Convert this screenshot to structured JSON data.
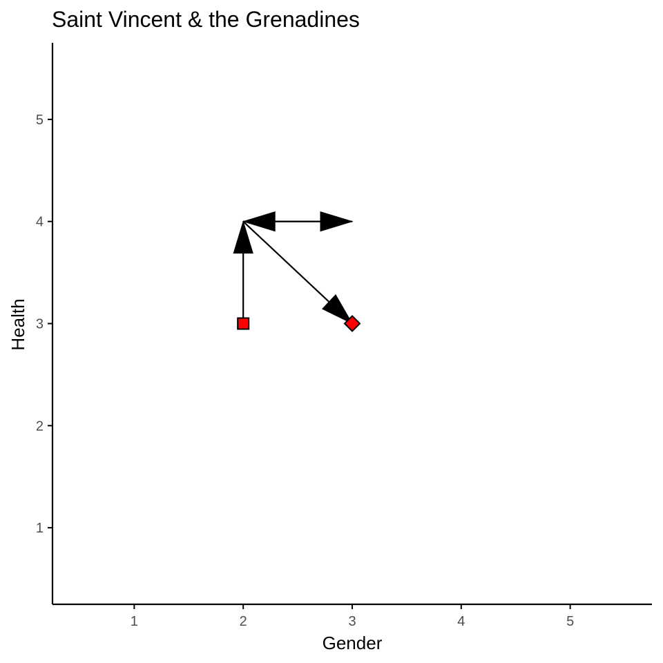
{
  "chart_data": {
    "type": "scatter",
    "title": "Saint Vincent & the Grenadines",
    "xlabel": "Gender",
    "ylabel": "Health",
    "xlim": [
      0.25,
      5.75
    ],
    "ylim": [
      0.25,
      5.75
    ],
    "x_ticks": [
      1,
      2,
      3,
      4,
      5
    ],
    "y_ticks": [
      1,
      2,
      3,
      4,
      5
    ],
    "grid": false,
    "points": [
      {
        "x": 2,
        "y": 3,
        "shape": "square",
        "fill": "#ff0000"
      },
      {
        "x": 3,
        "y": 3,
        "shape": "diamond",
        "fill": "#ff0000"
      }
    ],
    "arrows": [
      {
        "from": [
          2,
          3
        ],
        "to": [
          2,
          4
        ]
      },
      {
        "from": [
          2,
          4
        ],
        "to": [
          3,
          4
        ]
      },
      {
        "from": [
          3,
          4
        ],
        "to": [
          2,
          4
        ]
      },
      {
        "from": [
          2,
          4
        ],
        "to": [
          3,
          3
        ]
      }
    ],
    "colors": {
      "marker_fill": "#ff0000",
      "marker_stroke": "#000000",
      "arrow": "#000000",
      "axis": "#000000",
      "tick_label": "#4d4d4d"
    }
  }
}
